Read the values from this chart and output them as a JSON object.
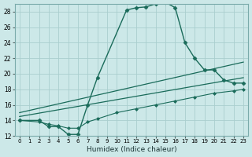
{
  "xlabel": "Humidex (Indice chaleur)",
  "background_color": "#cce8e8",
  "grid_color": "#aacece",
  "line_color": "#1a6b5a",
  "xlim": [
    -0.5,
    23.5
  ],
  "ylim": [
    12,
    29
  ],
  "xtick_labels": [
    "0",
    "1",
    "2",
    "3",
    "4",
    "5",
    "6",
    "7",
    "8",
    "9",
    "10",
    "11",
    "12",
    "13",
    "14",
    "15",
    "16",
    "17",
    "18",
    "19",
    "20",
    "21",
    "22",
    "23"
  ],
  "xtick_vals": [
    0,
    1,
    2,
    3,
    4,
    5,
    6,
    7,
    8,
    9,
    10,
    11,
    12,
    13,
    14,
    15,
    16,
    17,
    18,
    19,
    20,
    21,
    22,
    23
  ],
  "yticks": [
    12,
    14,
    16,
    18,
    20,
    22,
    24,
    26,
    28
  ],
  "series": [
    {
      "x": [
        0,
        2,
        3,
        4,
        5,
        6,
        7,
        8,
        11,
        12,
        13,
        14,
        15,
        16,
        17,
        18,
        19,
        20,
        21,
        22,
        23
      ],
      "y": [
        14,
        14,
        13.2,
        13.2,
        12.2,
        12.2,
        16,
        19.5,
        28.2,
        28.5,
        28.6,
        29.0,
        29.2,
        28.5,
        24,
        22,
        20.5,
        20.5,
        19.2,
        18.8,
        18.8
      ],
      "marker": "D",
      "markersize": 2.5,
      "linewidth": 1.0
    },
    {
      "x": [
        0,
        2,
        3,
        4,
        5,
        6,
        7,
        8,
        10,
        12,
        14,
        16,
        18,
        20,
        22,
        23
      ],
      "y": [
        14,
        13.8,
        13.5,
        13.3,
        13.0,
        13.0,
        13.8,
        14.2,
        15.0,
        15.5,
        16.0,
        16.5,
        17.0,
        17.5,
        17.8,
        18.0
      ],
      "marker": "D",
      "markersize": 2.0,
      "linewidth": 0.8
    },
    {
      "x": [
        0,
        23
      ],
      "y": [
        14.5,
        19.5
      ],
      "marker": null,
      "markersize": 0,
      "linewidth": 0.9
    },
    {
      "x": [
        0,
        23
      ],
      "y": [
        15.0,
        21.5
      ],
      "marker": null,
      "markersize": 0,
      "linewidth": 0.9
    }
  ]
}
